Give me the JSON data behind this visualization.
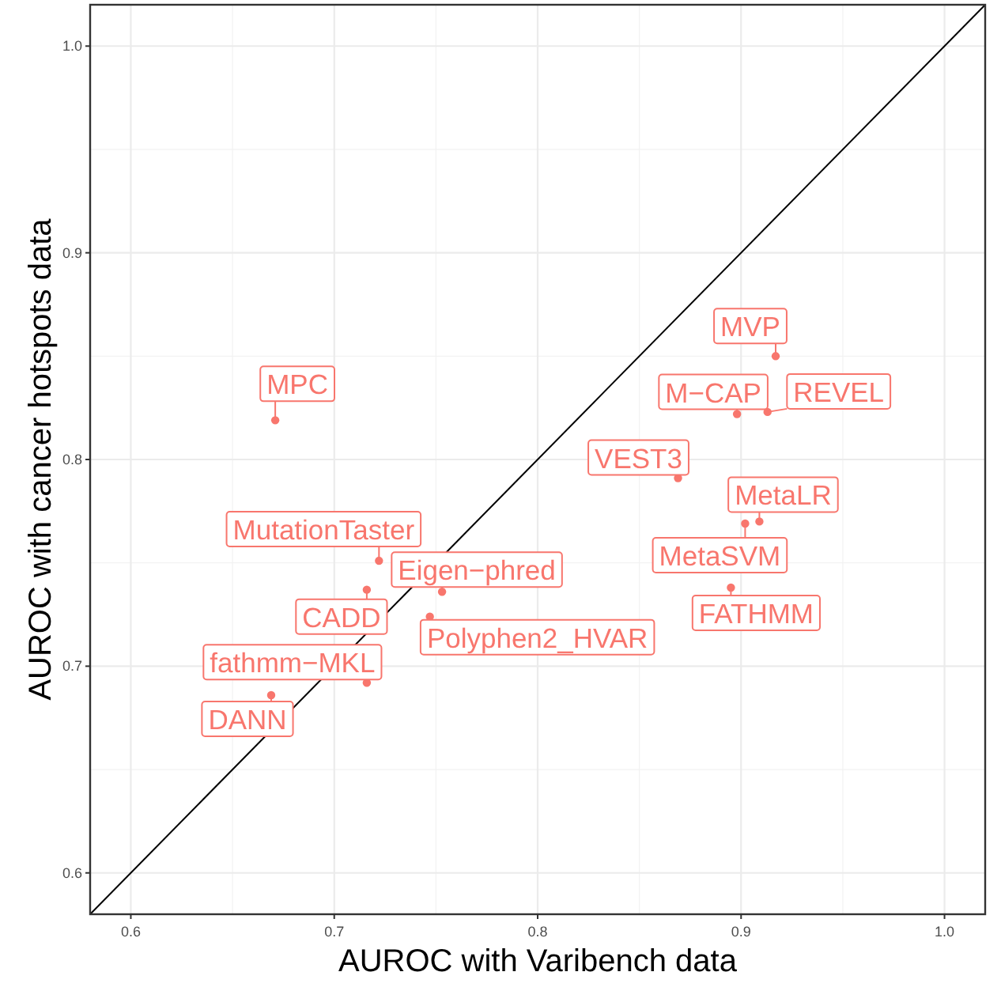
{
  "chart_data": {
    "type": "scatter",
    "xlabel": "AUROC with Varibench data",
    "ylabel": "AUROC with cancer hotspots data",
    "xlim": [
      0.58,
      1.02
    ],
    "ylim": [
      0.58,
      1.02
    ],
    "xticks": [
      {
        "value": 0.6,
        "label": "0.6"
      },
      {
        "value": 0.7,
        "label": "0.7"
      },
      {
        "value": 0.8,
        "label": "0.8"
      },
      {
        "value": 0.9,
        "label": "0.9"
      },
      {
        "value": 1,
        "label": "1.0"
      }
    ],
    "yticks": [
      {
        "value": 0.6,
        "label": "0.6"
      },
      {
        "value": 0.7,
        "label": "0.7"
      },
      {
        "value": 0.8,
        "label": "0.8"
      },
      {
        "value": 0.9,
        "label": "0.9"
      },
      {
        "value": 1,
        "label": "1.0"
      }
    ],
    "grid": true,
    "series": [
      {
        "color": "#f8766d",
        "x": [
          0.671,
          0.917,
          0.898,
          0.913,
          0.869,
          0.909,
          0.902,
          0.895,
          0.722,
          0.753,
          0.716,
          0.747,
          0.716,
          0.669
        ],
        "values": [
          0.819,
          0.85,
          0.822,
          0.823,
          0.791,
          0.77,
          0.769,
          0.738,
          0.751,
          0.736,
          0.737,
          0.724,
          0.692,
          0.686
        ]
      },
      {
        "type": "line",
        "color": "#000000",
        "x": [
          0.58,
          1.02
        ],
        "values": [
          0.58,
          1.02
        ]
      }
    ],
    "annotations": [
      {
        "text": "MPC",
        "x": 0.671,
        "y": 0.819
      },
      {
        "text": "MVP",
        "x": 0.917,
        "y": 0.85
      },
      {
        "text": "M−CAP",
        "x": 0.898,
        "y": 0.822
      },
      {
        "text": "REVEL",
        "x": 0.913,
        "y": 0.823
      },
      {
        "text": "VEST3",
        "x": 0.869,
        "y": 0.791
      },
      {
        "text": "MetaLR",
        "x": 0.909,
        "y": 0.77
      },
      {
        "text": "MetaSVM",
        "x": 0.902,
        "y": 0.769
      },
      {
        "text": "FATHMM",
        "x": 0.895,
        "y": 0.738
      },
      {
        "text": "MutationTaster",
        "x": 0.722,
        "y": 0.751
      },
      {
        "text": "Eigen−phred",
        "x": 0.753,
        "y": 0.736
      },
      {
        "text": "CADD",
        "x": 0.716,
        "y": 0.737
      },
      {
        "text": "Polyphen2_HVAR",
        "x": 0.747,
        "y": 0.724
      },
      {
        "text": "fathmm−MKL",
        "x": 0.716,
        "y": 0.692
      },
      {
        "text": "DANN",
        "x": 0.669,
        "y": 0.686
      }
    ]
  }
}
